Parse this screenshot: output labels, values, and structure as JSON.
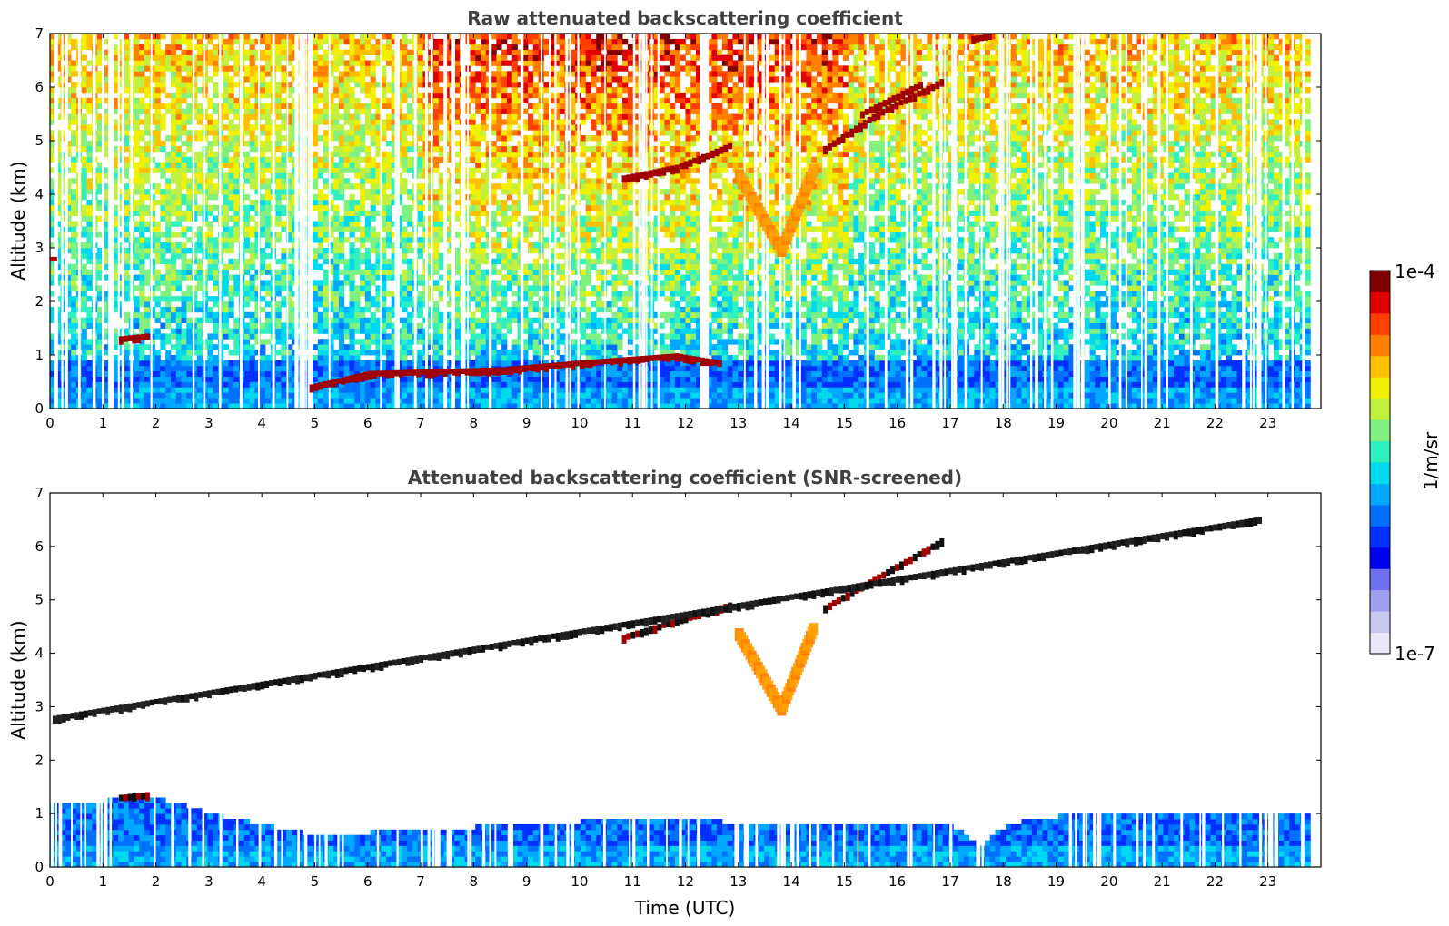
{
  "chart_data": [
    {
      "type": "heatmap",
      "title": "Raw attenuated backscattering coefficient",
      "xlabel": "",
      "ylabel": "Altitude (km)",
      "xlim": [
        0,
        24
      ],
      "ylim": [
        0,
        7
      ],
      "x_ticks": [
        "0",
        "1",
        "2",
        "3",
        "4",
        "5",
        "6",
        "7",
        "8",
        "9",
        "10",
        "11",
        "12",
        "13",
        "14",
        "15",
        "16",
        "17",
        "18",
        "19",
        "20",
        "21",
        "22",
        "23"
      ],
      "y_ticks": [
        "0",
        "1",
        "2",
        "3",
        "4",
        "5",
        "6",
        "7"
      ],
      "features": [
        {
          "kind": "boundary_layer",
          "t_start": 0,
          "t_end": 23.8,
          "top_km": 0.9
        },
        {
          "kind": "cloud_layer",
          "points": [
            [
              1.3,
              1.3
            ],
            [
              1.8,
              1.35
            ]
          ]
        },
        {
          "kind": "cloud_layer",
          "points": [
            [
              4.9,
              0.4
            ],
            [
              6.0,
              0.65
            ],
            [
              8.5,
              0.72
            ],
            [
              10.0,
              0.85
            ],
            [
              11.8,
              0.98
            ],
            [
              12.6,
              0.85
            ]
          ]
        },
        {
          "kind": "cloud_layer",
          "points": [
            [
              10.8,
              4.3
            ],
            [
              11.8,
              4.5
            ],
            [
              12.8,
              4.9
            ]
          ]
        },
        {
          "kind": "fall_streak",
          "points": [
            [
              13.0,
              4.4
            ],
            [
              13.8,
              3.0
            ],
            [
              14.4,
              4.5
            ]
          ]
        },
        {
          "kind": "cloud_layer",
          "points": [
            [
              14.6,
              4.85
            ],
            [
              15.6,
              5.5
            ],
            [
              16.8,
              6.1
            ]
          ]
        },
        {
          "kind": "cloud_layer",
          "points": [
            [
              15.3,
              5.5
            ],
            [
              16.4,
              6.05
            ]
          ]
        },
        {
          "kind": "cloud_layer",
          "points": [
            [
              17.4,
              6.9
            ],
            [
              17.7,
              6.95
            ]
          ]
        },
        {
          "kind": "point_echo",
          "points": [
            [
              0.05,
              2.78
            ]
          ]
        }
      ]
    },
    {
      "type": "heatmap",
      "title": "Attenuated backscattering coefficient (SNR-screened)",
      "xlabel": "Time (UTC)",
      "ylabel": "Altitude (km)",
      "xlim": [
        0,
        24
      ],
      "ylim": [
        0,
        7
      ],
      "x_ticks": [
        "0",
        "1",
        "2",
        "3",
        "4",
        "5",
        "6",
        "7",
        "8",
        "9",
        "10",
        "11",
        "12",
        "13",
        "14",
        "15",
        "16",
        "17",
        "18",
        "19",
        "20",
        "21",
        "22",
        "23"
      ],
      "y_ticks": [
        "0",
        "1",
        "2",
        "3",
        "4",
        "5",
        "6",
        "7"
      ],
      "features": [
        {
          "kind": "boundary_layer",
          "t_start": 0,
          "t_end": 23.8,
          "top_km_profile": [
            [
              0,
              1.2
            ],
            [
              2,
              1.3
            ],
            [
              3,
              1.0
            ],
            [
              5,
              0.6
            ],
            [
              8,
              0.75
            ],
            [
              12,
              0.95
            ],
            [
              13,
              0.8
            ],
            [
              17,
              0.75
            ],
            [
              17.6,
              0.4
            ],
            [
              18,
              0.8
            ],
            [
              19,
              0.95
            ],
            [
              23.8,
              1.05
            ]
          ]
        },
        {
          "kind": "cloud_layer",
          "points": [
            [
              1.3,
              1.3
            ],
            [
              1.8,
              1.35
            ]
          ]
        },
        {
          "kind": "cloud_layer",
          "points": [
            [
              10.8,
              4.3
            ],
            [
              12.8,
              4.9
            ]
          ]
        },
        {
          "kind": "fall_streak",
          "points": [
            [
              13.0,
              4.4
            ],
            [
              13.8,
              3.0
            ],
            [
              14.4,
              4.5
            ]
          ]
        },
        {
          "kind": "cloud_layer",
          "points": [
            [
              14.6,
              4.85
            ],
            [
              16.8,
              6.1
            ]
          ]
        },
        {
          "kind": "point_echo",
          "points": [
            [
              0.05,
              2.78
            ],
            [
              22.8,
              6.5
            ]
          ]
        }
      ]
    }
  ],
  "colorbar": {
    "label": "1/m/sr",
    "max_label": "1e-4",
    "min_label": "1e-7",
    "scale": "log",
    "colors": [
      "#e8e8f8",
      "#c8c8f0",
      "#a0a0f0",
      "#7070f0",
      "#0000f0",
      "#0030ff",
      "#0070ff",
      "#00a8ff",
      "#00d8f0",
      "#30f0c0",
      "#80f080",
      "#c0f040",
      "#f0f000",
      "#ffc000",
      "#ff8000",
      "#ff4000",
      "#e00000",
      "#800000"
    ]
  }
}
